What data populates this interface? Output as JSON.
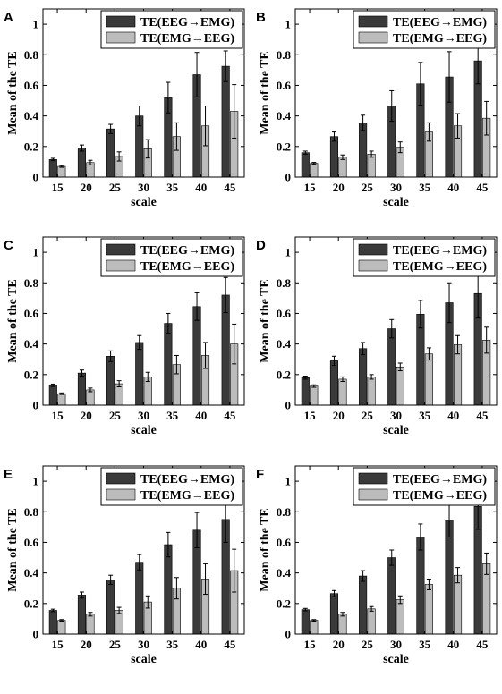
{
  "chart_data": [
    {
      "panel": "A",
      "type": "bar",
      "categories": [
        "15",
        "20",
        "25",
        "30",
        "35",
        "40",
        "45"
      ],
      "series": [
        {
          "name": "TE(EEG→EMG)",
          "color": "#3a3a3a",
          "values": [
            0.115,
            0.19,
            0.315,
            0.4,
            0.52,
            0.67,
            0.725
          ],
          "errors": [
            0.008,
            0.02,
            0.03,
            0.065,
            0.1,
            0.145,
            0.1
          ]
        },
        {
          "name": "TE(EMG→EEG)",
          "color": "#bcbcbc",
          "values": [
            0.07,
            0.095,
            0.135,
            0.185,
            0.265,
            0.335,
            0.43
          ],
          "errors": [
            0.006,
            0.015,
            0.03,
            0.06,
            0.09,
            0.13,
            0.175
          ]
        }
      ],
      "xlabel": "scale",
      "ylabel": "Mean of the TE",
      "ylim": [
        0,
        1.1
      ],
      "yticks": [
        "0",
        "0.2",
        "0.4",
        "0.6",
        "0.8",
        "1"
      ],
      "yticks_values": [
        0,
        0.2,
        0.4,
        0.6,
        0.8,
        1
      ],
      "legend": "top-right",
      "grid": false
    },
    {
      "panel": "B",
      "type": "bar",
      "categories": [
        "15",
        "20",
        "25",
        "30",
        "35",
        "40",
        "45"
      ],
      "series": [
        {
          "name": "TE(EEG→EMG)",
          "color": "#3a3a3a",
          "values": [
            0.16,
            0.265,
            0.355,
            0.465,
            0.61,
            0.655,
            0.76
          ],
          "errors": [
            0.01,
            0.03,
            0.05,
            0.1,
            0.14,
            0.165,
            0.15
          ]
        },
        {
          "name": "TE(EMG→EEG)",
          "color": "#bcbcbc",
          "values": [
            0.09,
            0.13,
            0.15,
            0.195,
            0.295,
            0.335,
            0.385
          ],
          "errors": [
            0.006,
            0.015,
            0.02,
            0.035,
            0.06,
            0.08,
            0.11
          ]
        }
      ],
      "xlabel": "scale",
      "ylabel": "Mean of the TE",
      "ylim": [
        0,
        1.1
      ],
      "yticks": [
        "0",
        "0.2",
        "0.4",
        "0.6",
        "0.8",
        "1"
      ],
      "yticks_values": [
        0,
        0.2,
        0.4,
        0.6,
        0.8,
        1
      ],
      "legend": "top-right",
      "grid": false
    },
    {
      "panel": "C",
      "type": "bar",
      "categories": [
        "15",
        "20",
        "25",
        "30",
        "35",
        "40",
        "45"
      ],
      "series": [
        {
          "name": "TE(EEG→EMG)",
          "color": "#3a3a3a",
          "values": [
            0.13,
            0.21,
            0.32,
            0.41,
            0.535,
            0.645,
            0.72
          ],
          "errors": [
            0.008,
            0.02,
            0.035,
            0.045,
            0.065,
            0.09,
            0.115
          ]
        },
        {
          "name": "TE(EMG→EEG)",
          "color": "#bcbcbc",
          "values": [
            0.075,
            0.1,
            0.14,
            0.185,
            0.265,
            0.325,
            0.4
          ],
          "errors": [
            0.005,
            0.012,
            0.02,
            0.03,
            0.06,
            0.085,
            0.13
          ]
        }
      ],
      "xlabel": "scale",
      "ylabel": "Mean of the TE",
      "ylim": [
        0,
        1.1
      ],
      "yticks": [
        "0",
        "0.2",
        "0.4",
        "0.6",
        "0.8",
        "1"
      ],
      "yticks_values": [
        0,
        0.2,
        0.4,
        0.6,
        0.8,
        1
      ],
      "legend": "top-right",
      "grid": false
    },
    {
      "panel": "D",
      "type": "bar",
      "categories": [
        "15",
        "20",
        "25",
        "30",
        "35",
        "40",
        "45"
      ],
      "series": [
        {
          "name": "TE(EEG→EMG)",
          "color": "#3a3a3a",
          "values": [
            0.18,
            0.29,
            0.37,
            0.5,
            0.595,
            0.67,
            0.73
          ],
          "errors": [
            0.01,
            0.03,
            0.04,
            0.06,
            0.09,
            0.13,
            0.16
          ]
        },
        {
          "name": "TE(EMG→EEG)",
          "color": "#bcbcbc",
          "values": [
            0.125,
            0.17,
            0.185,
            0.25,
            0.335,
            0.395,
            0.425
          ],
          "errors": [
            0.008,
            0.015,
            0.015,
            0.025,
            0.04,
            0.06,
            0.085
          ]
        }
      ],
      "xlabel": "scale",
      "ylabel": "Mean of the TE",
      "ylim": [
        0,
        1.1
      ],
      "yticks": [
        "0",
        "0.2",
        "0.4",
        "0.6",
        "0.8",
        "1"
      ],
      "yticks_values": [
        0,
        0.2,
        0.4,
        0.6,
        0.8,
        1
      ],
      "legend": "top-right",
      "grid": false
    },
    {
      "panel": "E",
      "type": "bar",
      "categories": [
        "15",
        "20",
        "25",
        "30",
        "35",
        "40",
        "45"
      ],
      "series": [
        {
          "name": "TE(EEG→EMG)",
          "color": "#3a3a3a",
          "values": [
            0.155,
            0.255,
            0.355,
            0.47,
            0.585,
            0.68,
            0.75
          ],
          "errors": [
            0.008,
            0.02,
            0.03,
            0.05,
            0.08,
            0.115,
            0.15
          ]
        },
        {
          "name": "TE(EMG→EEG)",
          "color": "#bcbcbc",
          "values": [
            0.09,
            0.13,
            0.155,
            0.21,
            0.3,
            0.36,
            0.415
          ],
          "errors": [
            0.005,
            0.012,
            0.02,
            0.04,
            0.07,
            0.1,
            0.14
          ]
        }
      ],
      "xlabel": "scale",
      "ylabel": "Mean of the TE",
      "ylim": [
        0,
        1.1
      ],
      "yticks": [
        "0",
        "0.2",
        "0.4",
        "0.6",
        "0.8",
        "1"
      ],
      "yticks_values": [
        0,
        0.2,
        0.4,
        0.6,
        0.8,
        1
      ],
      "legend": "top-right",
      "grid": false
    },
    {
      "panel": "F",
      "type": "bar",
      "categories": [
        "15",
        "20",
        "25",
        "30",
        "35",
        "40",
        "45"
      ],
      "series": [
        {
          "name": "TE(EEG→EMG)",
          "color": "#3a3a3a",
          "values": [
            0.16,
            0.265,
            0.38,
            0.5,
            0.635,
            0.745,
            0.835
          ],
          "errors": [
            0.008,
            0.02,
            0.035,
            0.05,
            0.085,
            0.11,
            0.15
          ]
        },
        {
          "name": "TE(EMG→EEG)",
          "color": "#bcbcbc",
          "values": [
            0.09,
            0.13,
            0.165,
            0.225,
            0.325,
            0.385,
            0.46
          ],
          "errors": [
            0.005,
            0.012,
            0.015,
            0.025,
            0.035,
            0.05,
            0.07
          ]
        }
      ],
      "xlabel": "scale",
      "ylabel": "Mean of the TE",
      "ylim": [
        0,
        1.1
      ],
      "yticks": [
        "0",
        "0.2",
        "0.4",
        "0.6",
        "0.8",
        "1"
      ],
      "yticks_values": [
        0,
        0.2,
        0.4,
        0.6,
        0.8,
        1
      ],
      "legend": "top-right",
      "grid": false
    }
  ]
}
